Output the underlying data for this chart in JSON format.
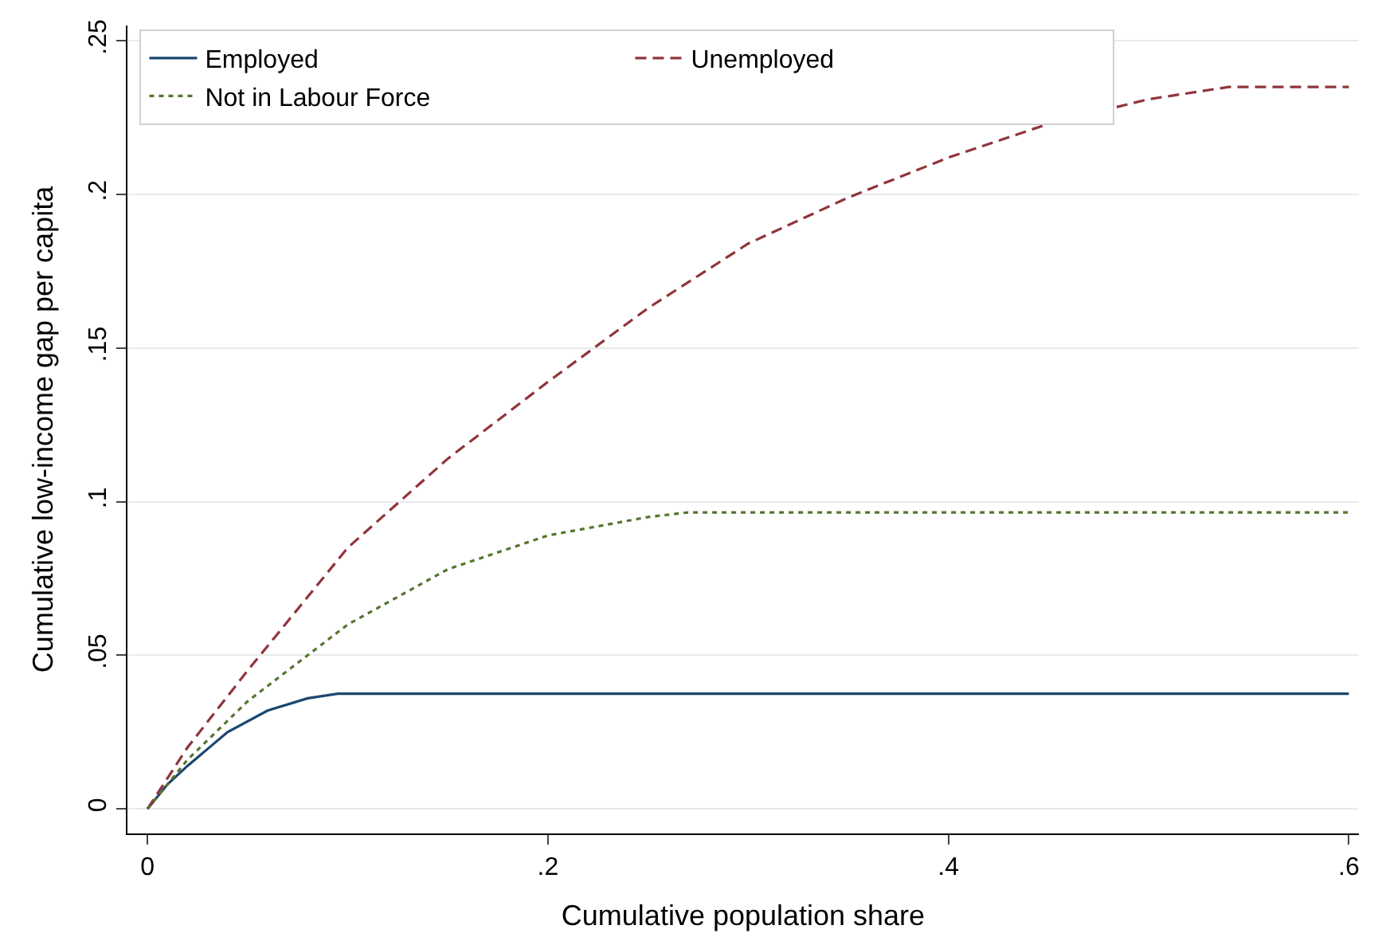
{
  "chart_data": {
    "type": "line",
    "xlabel": "Cumulative population share",
    "ylabel": "Cumulative low-income gap per capita",
    "series": [
      {
        "name": "Employed",
        "color": "#1a476f",
        "line_style": "solid",
        "x": [
          0,
          0.01,
          0.02,
          0.04,
          0.06,
          0.08,
          0.095,
          0.6
        ],
        "values": [
          0,
          0.008,
          0.014,
          0.025,
          0.032,
          0.036,
          0.0375,
          0.0375
        ]
      },
      {
        "name": "Unemployed",
        "color": "#90353b",
        "line_style": "dashed",
        "x": [
          0,
          0.02,
          0.05,
          0.1,
          0.15,
          0.2,
          0.25,
          0.3,
          0.35,
          0.4,
          0.45,
          0.5,
          0.54,
          0.6
        ],
        "values": [
          0,
          0.02,
          0.045,
          0.085,
          0.114,
          0.139,
          0.163,
          0.184,
          0.199,
          0.212,
          0.223,
          0.231,
          0.235,
          0.235
        ]
      },
      {
        "name": "Not in Labour Force",
        "color": "#55752f",
        "line_style": "dotted",
        "x": [
          0,
          0.02,
          0.05,
          0.1,
          0.15,
          0.2,
          0.25,
          0.27,
          0.6
        ],
        "values": [
          0,
          0.016,
          0.035,
          0.06,
          0.078,
          0.089,
          0.095,
          0.0965,
          0.0965
        ]
      }
    ],
    "xlim": [
      -0.01,
      0.605
    ],
    "ylim": [
      -0.008,
      0.255
    ],
    "xticks": [
      0,
      {
        "value": 0.2,
        "label": ".2"
      },
      {
        "value": 0.4,
        "label": ".4"
      },
      {
        "value": 0.6,
        "label": ".6"
      }
    ],
    "yticks": [
      0,
      {
        "value": 0.05,
        "label": ".05"
      },
      {
        "value": 0.1,
        "label": ".1"
      },
      {
        "value": 0.15,
        "label": ".15"
      },
      {
        "value": 0.2,
        "label": ".2"
      },
      {
        "value": 0.25,
        "label": ".25"
      }
    ],
    "grid": "y",
    "legend": "top left",
    "marker": "none"
  }
}
